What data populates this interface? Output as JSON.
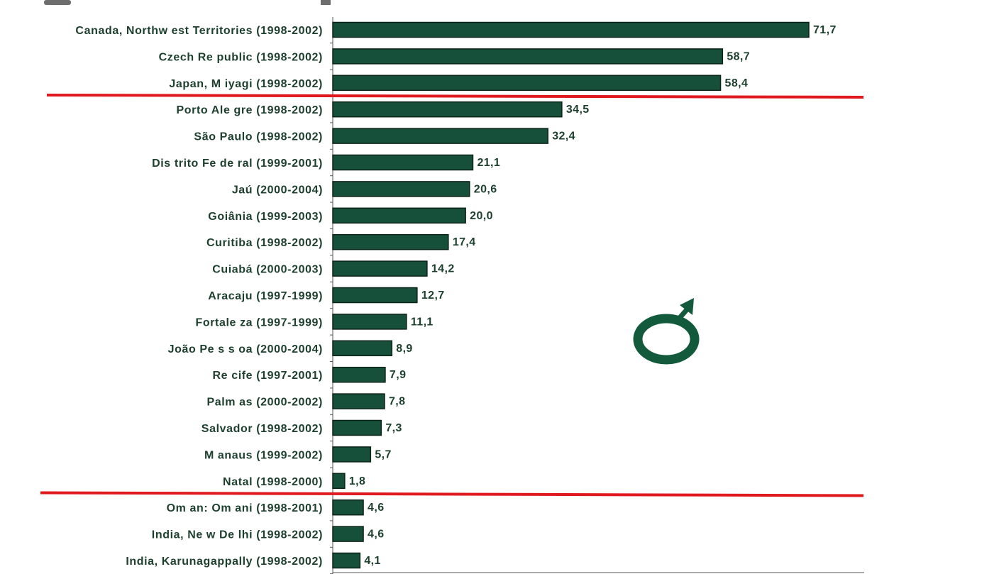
{
  "chart_data": {
    "type": "bar",
    "orientation": "horizontal",
    "categories": [
      "Canada, Northw est Territories (1998-2002)",
      "Czech Re public (1998-2002)",
      "Japan, M iyagi (1998-2002)",
      "Porto Ale gre (1998-2002)",
      "São Paulo (1998-2002)",
      "Dis trito Fe de ral (1999-2001)",
      "Jaú (2000-2004)",
      "Goiânia (1999-2003)",
      "Curitiba (1998-2002)",
      "Cuiabá (2000-2003)",
      "Aracaju (1997-1999)",
      "Fortale za (1997-1999)",
      "João Pe s s oa (2000-2004)",
      "Re cife (1997-2001)",
      "Palm as (2000-2002)",
      "Salvador (1998-2002)",
      "M anaus (1999-2002)",
      "Natal (1998-2000)",
      "Om an: Om ani (1998-2001)",
      "India, Ne w De lhi (1998-2002)",
      "India, Karunagappally (1998-2002)"
    ],
    "values": [
      71.7,
      58.7,
      58.4,
      34.5,
      32.4,
      21.1,
      20.6,
      20.0,
      17.4,
      14.2,
      12.7,
      11.1,
      8.9,
      7.9,
      7.8,
      7.3,
      5.7,
      1.8,
      4.6,
      4.6,
      4.1
    ],
    "value_labels": [
      "71,7",
      "58,7",
      "58,4",
      "34,5",
      "32,4",
      "21,1",
      "20,6",
      "20,0",
      "17,4",
      "14,2",
      "12,7",
      "11,1",
      "8,9",
      "7,9",
      "7,8",
      "7,3",
      "5,7",
      "1,8",
      "4,6",
      "4,6",
      "4,1"
    ],
    "xlim": [
      0,
      80
    ],
    "grid": false,
    "legend": "none",
    "separators_after_index": [
      2,
      17
    ],
    "colors": {
      "bar": "#17503a",
      "bar_edge": "#0c2418",
      "label": "#1d3f2e",
      "separator": "#e0191f",
      "symbol": "#135a3c"
    },
    "symbol": "male-symbol-icon"
  }
}
